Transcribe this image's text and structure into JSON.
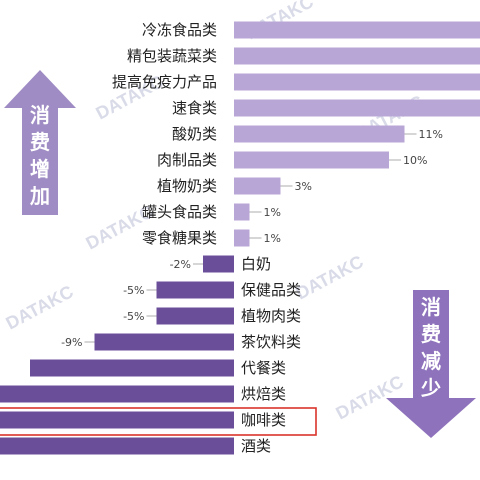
{
  "chart_data": {
    "type": "bar",
    "orientation": "horizontal",
    "title": "",
    "xlabel": "",
    "ylabel": "",
    "categories": [
      "冷冻食品类",
      "精包装蔬菜类",
      "提高免疫力产品",
      "速食类",
      "酸奶类",
      "肉制品类",
      "植物奶类",
      "罐头食品类",
      "零食糖果类",
      "白奶",
      "保健品类",
      "植物肉类",
      "茶饮料类",
      "代餐类",
      "烘焙类",
      "咖啡类",
      "酒类"
    ],
    "values": [
      null,
      null,
      null,
      null,
      11,
      10,
      3,
      1,
      1,
      -2,
      -5,
      -5,
      -9,
      null,
      null,
      null,
      null
    ],
    "value_labels": [
      "",
      "",
      "",
      "",
      "11%",
      "10%",
      "3%",
      "1%",
      "1%",
      "-2%",
      "-5%",
      "-5%",
      "-9%",
      "",
      "",
      "",
      ""
    ],
    "highlighted_category": "咖啡类",
    "colors": {
      "positive": "#b8a6d6",
      "negative": "#6a4e9a",
      "arrow_up": "#9f8cc4",
      "arrow_down": "#8e72bb",
      "highlight_box": "#d9342b"
    }
  },
  "annotations": {
    "increase": "消费增加",
    "decrease": "消费减少"
  },
  "watermark": "DATAKC"
}
